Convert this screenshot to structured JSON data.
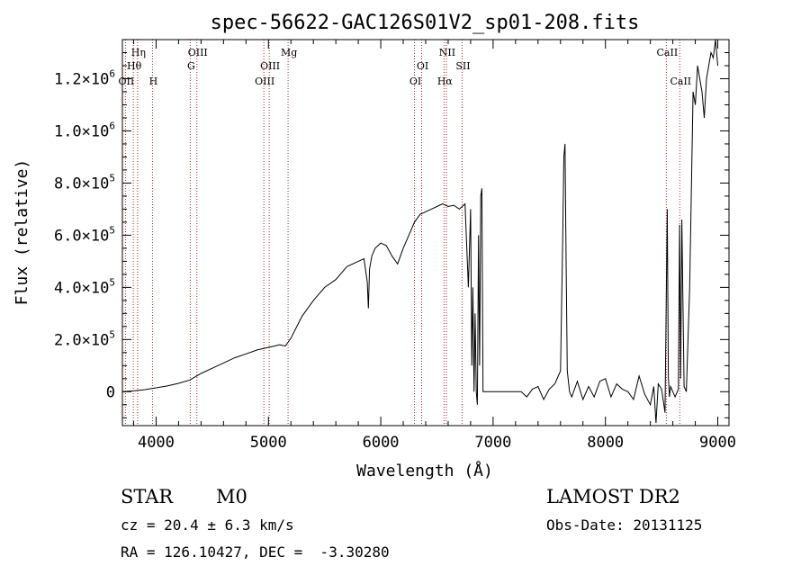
{
  "chart_data": {
    "type": "line",
    "title": "spec-56622-GAC126S01V2_sp01-208.fits",
    "xlabel": "Wavelength (Å)",
    "ylabel": "Flux (relative)",
    "xlim": [
      3700,
      9100
    ],
    "ylim": [
      -130000,
      1350000
    ],
    "grid": false,
    "legend": "none",
    "xticks": [
      {
        "value": 4000,
        "label": "4000"
      },
      {
        "value": 5000,
        "label": "5000"
      },
      {
        "value": 6000,
        "label": "6000"
      },
      {
        "value": 7000,
        "label": "7000"
      },
      {
        "value": 8000,
        "label": "8000"
      },
      {
        "value": 9000,
        "label": "9000"
      }
    ],
    "yticks": [
      {
        "value": 0,
        "mantissa": "0",
        "exponent": ""
      },
      {
        "value": 200000,
        "mantissa": "2.0×10",
        "exponent": "5"
      },
      {
        "value": 400000,
        "mantissa": "4.0×10",
        "exponent": "5"
      },
      {
        "value": 600000,
        "mantissa": "6.0×10",
        "exponent": "5"
      },
      {
        "value": 800000,
        "mantissa": "8.0×10",
        "exponent": "5"
      },
      {
        "value": 1000000,
        "mantissa": "1.0×10",
        "exponent": "6"
      },
      {
        "value": 1200000,
        "mantissa": "1.2×10",
        "exponent": "6"
      }
    ],
    "lines": [
      {
        "label": "Hη",
        "wavelength": 3835,
        "row": 0
      },
      {
        "label": "Hθ",
        "wavelength": 3797,
        "row": 1
      },
      {
        "label": "OII",
        "wavelength": 3727,
        "row": 2
      },
      {
        "label": "H",
        "wavelength": 3968,
        "row": 2
      },
      {
        "label": "OIII",
        "wavelength": 4363,
        "row": 0
      },
      {
        "label": "G",
        "wavelength": 4304,
        "row": 1
      },
      {
        "label": "Mg",
        "wavelength": 5175,
        "row": 0
      },
      {
        "label": "OIII",
        "wavelength": 5007,
        "row": 1
      },
      {
        "label": "OIII",
        "wavelength": 4959,
        "row": 2
      },
      {
        "label": "NII",
        "wavelength": 6584,
        "row": 0
      },
      {
        "label": "OI",
        "wavelength": 6364,
        "row": 1
      },
      {
        "label": "SII",
        "wavelength": 6724,
        "row": 1
      },
      {
        "label": "OI",
        "wavelength": 6300,
        "row": 2
      },
      {
        "label": "Hα",
        "wavelength": 6563,
        "row": 2
      },
      {
        "label": "CaII",
        "wavelength": 8542,
        "row": 0
      },
      {
        "label": "CaII",
        "wavelength": 8662,
        "row": 2
      }
    ],
    "series": [
      {
        "x": [
          3700,
          3800,
          3900,
          4000,
          4100,
          4200,
          4300,
          4400,
          4500,
          4600,
          4700,
          4800,
          4900,
          5000,
          5050,
          5100,
          5150,
          5200,
          5300,
          5400,
          5500,
          5600,
          5700,
          5800,
          5850,
          5880,
          5890,
          5900,
          5920,
          5950,
          6000,
          6050,
          6100,
          6150,
          6200,
          6250,
          6300,
          6350,
          6400,
          6450,
          6500,
          6550,
          6600,
          6650,
          6700,
          6750,
          6780,
          6800,
          6810,
          6820,
          6830,
          6840,
          6850,
          6860,
          6870,
          6880,
          6890,
          6900,
          6910,
          6920,
          7000,
          7100,
          7200,
          7250,
          7300,
          7350,
          7400,
          7450,
          7500,
          7550,
          7600,
          7620,
          7630,
          7640,
          7650,
          7660,
          7680,
          7700,
          7750,
          7800,
          7850,
          7900,
          7950,
          8000,
          8050,
          8100,
          8150,
          8200,
          8250,
          8300,
          8350,
          8400,
          8430,
          8450,
          8470,
          8500,
          8530,
          8550,
          8560,
          8570,
          8580,
          8600,
          8620,
          8650,
          8660,
          8670,
          8680,
          8700,
          8720,
          8750,
          8780,
          8800,
          8820,
          8840,
          8860,
          8880,
          8900,
          8920,
          8940,
          8960,
          8980,
          9000
        ],
        "y": [
          0,
          3000,
          8000,
          15000,
          22000,
          32000,
          45000,
          70000,
          90000,
          110000,
          130000,
          145000,
          160000,
          170000,
          175000,
          180000,
          175000,
          205000,
          290000,
          350000,
          400000,
          430000,
          480000,
          500000,
          510000,
          420000,
          320000,
          470000,
          520000,
          550000,
          570000,
          560000,
          520000,
          490000,
          550000,
          600000,
          650000,
          680000,
          690000,
          700000,
          710000,
          720000,
          710000,
          715000,
          700000,
          720000,
          400000,
          700000,
          100000,
          400000,
          0,
          300000,
          0,
          -50000,
          600000,
          100000,
          750000,
          780000,
          0,
          0,
          0,
          0,
          0,
          0,
          -20000,
          10000,
          20000,
          -30000,
          10000,
          30000,
          80000,
          600000,
          900000,
          950000,
          500000,
          80000,
          0,
          -20000,
          40000,
          -30000,
          20000,
          -20000,
          40000,
          50000,
          -20000,
          30000,
          10000,
          0,
          -30000,
          60000,
          -10000,
          -50000,
          20000,
          -120000,
          30000,
          10000,
          -80000,
          700000,
          60000,
          -20000,
          20000,
          0,
          -20000,
          10000,
          640000,
          50000,
          660000,
          20000,
          0,
          400000,
          1150000,
          1100000,
          1250000,
          1200000,
          1150000,
          1050000,
          1200000,
          1250000,
          1300000,
          1280000,
          1350000,
          1250000
        ]
      }
    ]
  },
  "info": {
    "class": "STAR",
    "subclass": "M0",
    "survey": "LAMOST DR2",
    "cz": "cz = 20.4 ± 6.3 km/s",
    "obs_date": "Obs-Date: 20131125",
    "coords": "RA = 126.10427, DEC =  -3.30280"
  }
}
